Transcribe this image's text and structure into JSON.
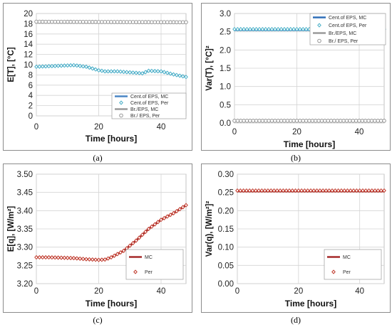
{
  "figure": {
    "captions": [
      "(a)",
      "(b)",
      "(c)",
      "(d)"
    ]
  },
  "chart_data": [
    {
      "type": "line",
      "xlabel": "Time [hours]",
      "ylabel": "E[T], [°C]",
      "xlim": [
        0,
        48
      ],
      "ylim": [
        0,
        20
      ],
      "xticks": [
        "0",
        "20",
        "40"
      ],
      "yticks": [
        "0",
        "2",
        "4",
        "6",
        "8",
        "10",
        "12",
        "14",
        "16",
        "18",
        "20"
      ],
      "grid": true,
      "legend": "bottom-right",
      "series": [
        {
          "name": "Cent.of EPS, MC",
          "style": "line",
          "color": "#4a86c5",
          "x": [
            0,
            4,
            8,
            12,
            16,
            20,
            22,
            26,
            30,
            34,
            36,
            40,
            44,
            48
          ],
          "y": [
            9.6,
            9.7,
            9.8,
            9.9,
            9.6,
            8.9,
            8.7,
            8.7,
            8.5,
            8.3,
            8.8,
            8.7,
            8.1,
            7.6
          ]
        },
        {
          "name": "Cent.of EPS, Per",
          "style": "diamond",
          "color": "#4ab0c8",
          "x": [
            0,
            4,
            8,
            12,
            16,
            20,
            22,
            26,
            30,
            34,
            36,
            40,
            44,
            48
          ],
          "y": [
            9.6,
            9.7,
            9.8,
            9.9,
            9.6,
            8.9,
            8.7,
            8.7,
            8.5,
            8.3,
            8.8,
            8.7,
            8.1,
            7.6
          ]
        },
        {
          "name": "Br./EPS, MC",
          "style": "line",
          "color": "#9a9a9a",
          "x": [
            0,
            48
          ],
          "y": [
            18.3,
            18.3
          ]
        },
        {
          "name": "Br./ EPS, Per",
          "style": "circle",
          "color": "#8a8a8a",
          "x": [
            0,
            48
          ],
          "y": [
            18.4,
            18.3
          ]
        }
      ]
    },
    {
      "type": "line",
      "xlabel": "Time [hours]",
      "ylabel": "Var(T), [°C]²",
      "xlim": [
        0,
        48
      ],
      "ylim": [
        0,
        3
      ],
      "xticks": [
        "0",
        "20",
        "40"
      ],
      "yticks": [
        "0.0",
        "0.5",
        "1.0",
        "1.5",
        "2.0",
        "2.5",
        "3.0"
      ],
      "grid": true,
      "legend": "top-right",
      "series": [
        {
          "name": "Cent.of EPS, MC",
          "style": "line",
          "color": "#2e6fb8",
          "x": [
            0,
            48
          ],
          "y": [
            2.55,
            2.55
          ]
        },
        {
          "name": "Cent.of EPS, Per",
          "style": "diamond",
          "color": "#4ab0c8",
          "x": [
            0,
            48
          ],
          "y": [
            2.57,
            2.57
          ]
        },
        {
          "name": "Br./EPS, MC",
          "style": "line",
          "color": "#9a9a9a",
          "x": [
            0,
            48
          ],
          "y": [
            0.05,
            0.05
          ]
        },
        {
          "name": "Br./ EPS, Per",
          "style": "circle",
          "color": "#8a8a8a",
          "x": [
            0,
            48
          ],
          "y": [
            0.06,
            0.06
          ]
        }
      ]
    },
    {
      "type": "line",
      "xlabel": "Time [hours]",
      "ylabel": "E[q], [W/m²]",
      "xlim": [
        0,
        48
      ],
      "ylim": [
        3.2,
        3.5
      ],
      "xticks": [
        "0",
        "20",
        "40"
      ],
      "yticks": [
        "3.20",
        "3.25",
        "3.30",
        "3.35",
        "3.40",
        "3.45",
        "3.50"
      ],
      "grid": true,
      "legend": "bottom-right",
      "series": [
        {
          "name": "MC",
          "style": "line",
          "color": "#a52a2a",
          "x": [
            0,
            4,
            8,
            12,
            16,
            20,
            22,
            24,
            28,
            32,
            36,
            40,
            44,
            48
          ],
          "y": [
            3.272,
            3.272,
            3.271,
            3.27,
            3.267,
            3.265,
            3.266,
            3.272,
            3.29,
            3.318,
            3.35,
            3.375,
            3.393,
            3.415
          ]
        },
        {
          "name": "Per",
          "style": "diamond",
          "color": "#c0392b",
          "x": [
            0,
            4,
            8,
            12,
            16,
            20,
            22,
            24,
            28,
            32,
            36,
            40,
            44,
            48
          ],
          "y": [
            3.272,
            3.272,
            3.271,
            3.27,
            3.267,
            3.265,
            3.266,
            3.272,
            3.29,
            3.318,
            3.35,
            3.375,
            3.393,
            3.415
          ]
        }
      ]
    },
    {
      "type": "line",
      "xlabel": "Time [hours]",
      "ylabel": "Var(q), [W/m²]²",
      "xlim": [
        0,
        48
      ],
      "ylim": [
        0,
        0.3
      ],
      "xticks": [
        "0",
        "20",
        "40"
      ],
      "yticks": [
        "0.00",
        "0.05",
        "0.10",
        "0.15",
        "0.20",
        "0.25",
        "0.30"
      ],
      "grid": true,
      "legend": "bottom-right",
      "series": [
        {
          "name": "MC",
          "style": "line",
          "color": "#a52a2a",
          "x": [
            0,
            48
          ],
          "y": [
            0.253,
            0.253
          ]
        },
        {
          "name": "Per",
          "style": "diamond",
          "color": "#c0392b",
          "x": [
            0,
            48
          ],
          "y": [
            0.255,
            0.255
          ]
        }
      ]
    }
  ]
}
